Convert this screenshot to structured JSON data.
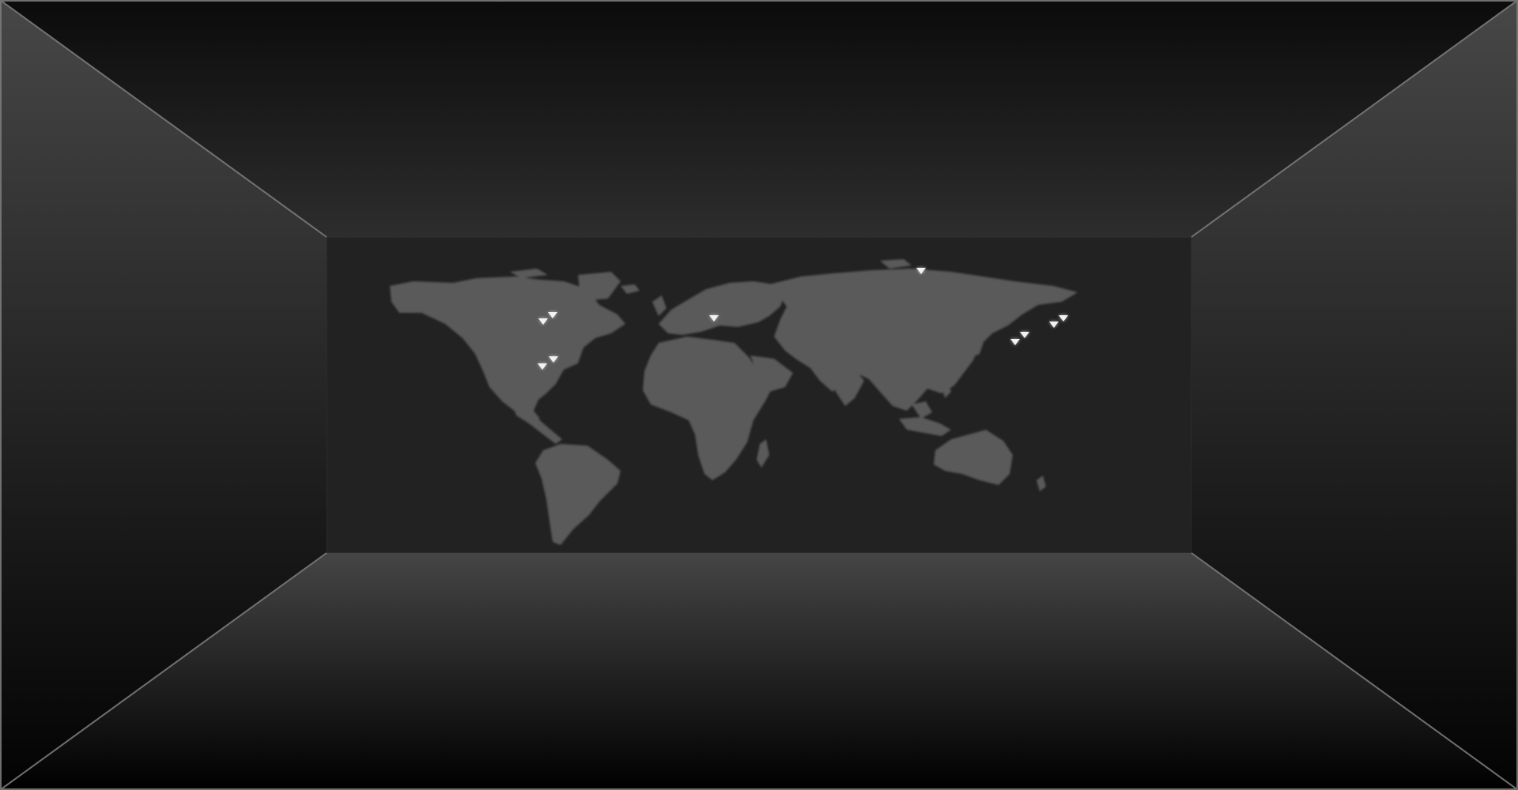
{
  "scene": {
    "kind": "3d-room-world-map",
    "colors": {
      "background": "#000000",
      "wall_light": "#474747",
      "wall_dark": "#050505",
      "ceiling_top": "#0b0b0b",
      "ceiling_bottom": "#2c2c2c",
      "floor_top": "#454545",
      "floor_bottom": "#000000",
      "edge": "#7a7a7a",
      "map_panel": "#222222",
      "land": "#5a5a5a",
      "marker": "#f2f2f2"
    }
  },
  "map": {
    "markers": [
      {
        "name": "location-marker-north-america-1",
        "lon": -78.5,
        "lat": 42.5
      },
      {
        "name": "location-marker-north-america-2",
        "lon": -74.5,
        "lat": 45.5
      },
      {
        "name": "location-marker-central-america",
        "lon": -78.6,
        "lat": 22.6
      },
      {
        "name": "location-marker-caribbean",
        "lon": -74.0,
        "lat": 25.6
      },
      {
        "name": "location-marker-western-europe",
        "lon": -7.5,
        "lat": 44.0
      },
      {
        "name": "location-marker-siberia",
        "lon": 78.0,
        "lat": 65.0
      },
      {
        "name": "location-marker-china-1",
        "lon": 117.0,
        "lat": 33.5
      },
      {
        "name": "location-marker-china-2",
        "lon": 121.0,
        "lat": 36.5
      },
      {
        "name": "location-marker-japan-1",
        "lon": 133.0,
        "lat": 41.0
      },
      {
        "name": "location-marker-japan-2",
        "lon": 137.0,
        "lat": 44.0
      }
    ]
  }
}
